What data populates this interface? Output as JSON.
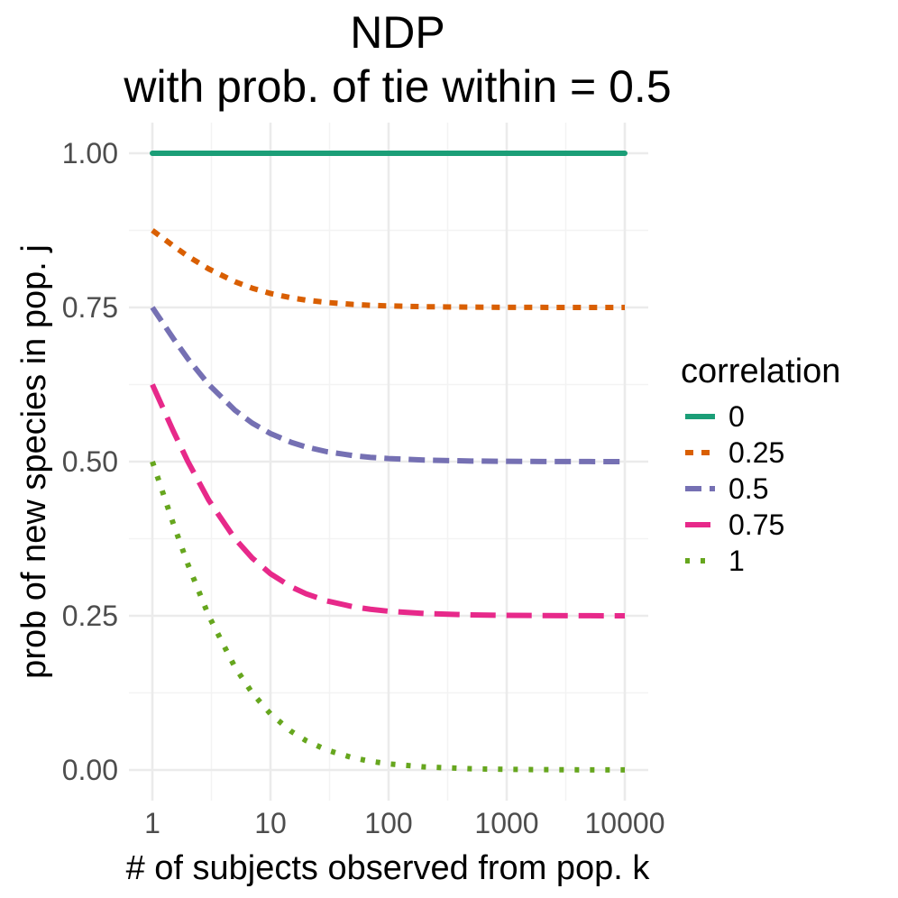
{
  "chart_data": {
    "type": "line",
    "title": "NDP",
    "subtitle": "with prob. of tie within = 0.5",
    "xlabel": "# of subjects observed from pop. k",
    "ylabel": "prob of new species in pop. j",
    "x_scale": "log10",
    "xlim": [
      1,
      10000
    ],
    "ylim": [
      0,
      1
    ],
    "x_ticks": [
      1,
      10,
      100,
      1000,
      10000
    ],
    "x_tick_labels": [
      "1",
      "10",
      "100",
      "1000",
      "10000"
    ],
    "y_ticks": [
      0,
      0.25,
      0.5,
      0.75,
      1
    ],
    "y_tick_labels": [
      "0.00",
      "0.25",
      "0.50",
      "0.75",
      "1.00"
    ],
    "grid": true,
    "legend": {
      "title": "correlation",
      "position": "right"
    },
    "x": [
      1,
      1.5,
      2,
      3,
      5,
      7,
      10,
      15,
      20,
      30,
      50,
      70,
      100,
      200,
      500,
      1000,
      2000,
      5000,
      10000
    ],
    "series": [
      {
        "name": "0",
        "color": "#1B9E77",
        "dash": "solid",
        "values": [
          1,
          1,
          1,
          1,
          1,
          1,
          1,
          1,
          1,
          1,
          1,
          1,
          1,
          1,
          1,
          1,
          1,
          1,
          1
        ]
      },
      {
        "name": "0.25",
        "color": "#D95F02",
        "dash": "dashed-short",
        "values": [
          0.875,
          0.85,
          0.833,
          0.8125,
          0.7917,
          0.7813,
          0.7727,
          0.7656,
          0.7619,
          0.7581,
          0.7549,
          0.7535,
          0.7525,
          0.7512,
          0.7505,
          0.7502,
          0.7501,
          0.75,
          0.75
        ]
      },
      {
        "name": "0.5",
        "color": "#7570B3",
        "dash": "dashed",
        "values": [
          0.75,
          0.7,
          0.6667,
          0.625,
          0.5833,
          0.5625,
          0.5455,
          0.5313,
          0.5238,
          0.5161,
          0.5098,
          0.507,
          0.505,
          0.5025,
          0.501,
          0.5005,
          0.5002,
          0.5001,
          0.5
        ]
      },
      {
        "name": "0.75",
        "color": "#E7298A",
        "dash": "long-dash",
        "values": [
          0.625,
          0.55,
          0.5,
          0.4375,
          0.375,
          0.3438,
          0.3182,
          0.2969,
          0.2857,
          0.2742,
          0.2647,
          0.2606,
          0.2574,
          0.2537,
          0.2515,
          0.2507,
          0.2504,
          0.2501,
          0.25
        ]
      },
      {
        "name": "1",
        "color": "#66A61E",
        "dash": "dotted",
        "values": [
          0.5,
          0.4,
          0.3333,
          0.25,
          0.1667,
          0.125,
          0.0909,
          0.0625,
          0.0476,
          0.0323,
          0.0196,
          0.0141,
          0.0099,
          0.005,
          0.002,
          0.001,
          0.0005,
          0.0002,
          0.0001
        ]
      }
    ]
  }
}
